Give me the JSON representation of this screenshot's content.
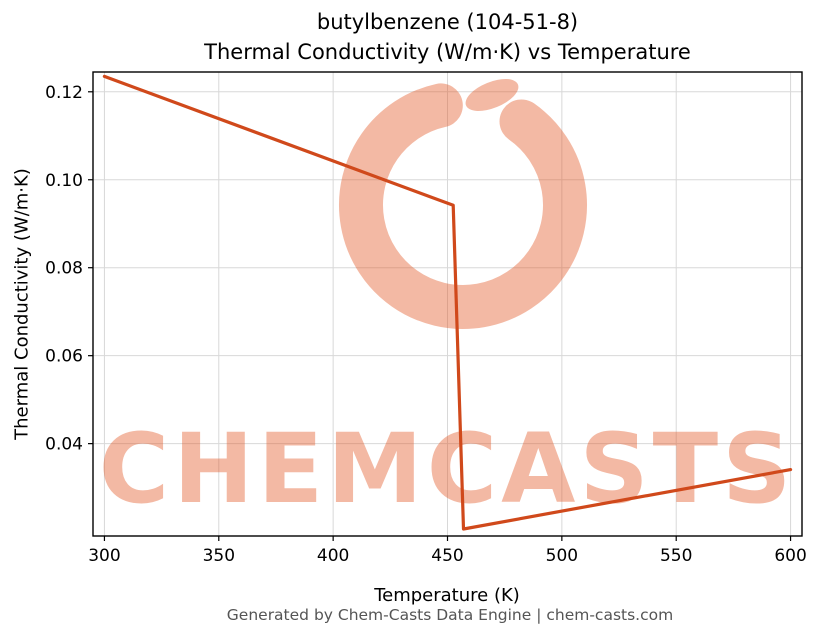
{
  "chart_data": {
    "type": "line",
    "title_line1": "butylbenzene (104-51-8)",
    "title_line2": "Thermal Conductivity (W/m·K) vs Temperature",
    "xlabel": "Temperature (K)",
    "ylabel": "Thermal Conductivity (W/m·K)",
    "xlim": [
      295,
      605
    ],
    "ylim": [
      0.019,
      0.1245
    ],
    "xticks": [
      300,
      350,
      400,
      450,
      500,
      550,
      600
    ],
    "xtick_labels": [
      "300",
      "350",
      "400",
      "450",
      "500",
      "550",
      "600"
    ],
    "yticks": [
      0.04,
      0.06,
      0.08,
      0.1,
      0.12
    ],
    "ytick_labels": [
      "0.04",
      "0.06",
      "0.08",
      "0.10",
      "0.12"
    ],
    "grid": true,
    "legend": "none",
    "series": [
      {
        "name": "thermal conductivity",
        "color": "#d0491b",
        "points": [
          [
            300,
            0.1235
          ],
          [
            452.5,
            0.0942
          ],
          [
            457,
            0.0206
          ],
          [
            600,
            0.0341
          ]
        ]
      }
    ]
  },
  "colors": {
    "grid": "#d8d8d8",
    "spine": "#000000",
    "tick_text": "#000000",
    "watermark": "#e35a28",
    "footer_text": "#555555"
  },
  "watermark": {
    "text": "CHEMCASTS",
    "logo": "chemcasts-ring-logo",
    "opacity": 0.42
  },
  "footer": {
    "text": "Generated by Chem-Casts Data Engine | chem-casts.com"
  }
}
